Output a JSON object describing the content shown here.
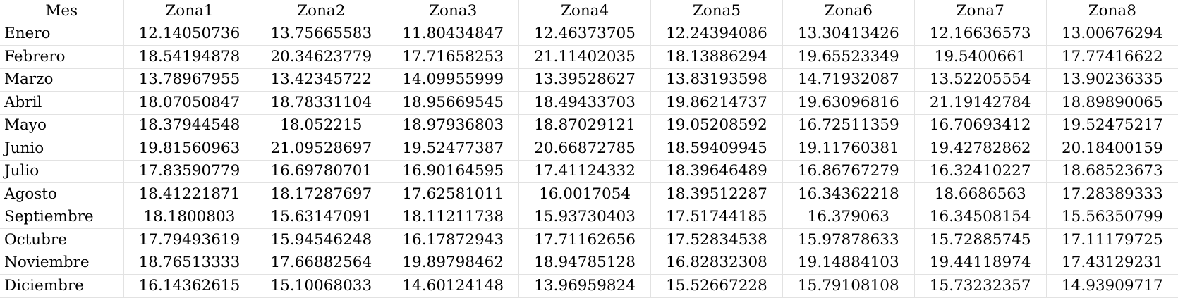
{
  "table": {
    "headers": [
      "Mes",
      "Zona1",
      "Zona2",
      "Zona3",
      "Zona4",
      "Zona5",
      "Zona6",
      "Zona7",
      "Zona8"
    ],
    "rows": [
      [
        "Enero",
        "12.14050736",
        "13.75665583",
        "11.80434847",
        "12.46373705",
        "12.24394086",
        "13.30413426",
        "12.16636573",
        "13.00676294"
      ],
      [
        "Febrero",
        "18.54194878",
        "20.34623779",
        "17.71658253",
        "21.11402035",
        "18.13886294",
        "19.65523349",
        "19.5400661",
        "17.77416622"
      ],
      [
        "Marzo",
        "13.78967955",
        "13.42345722",
        "14.09955999",
        "13.39528627",
        "13.83193598",
        "14.71932087",
        "13.52205554",
        "13.90236335"
      ],
      [
        "Abril",
        "18.07050847",
        "18.78331104",
        "18.95669545",
        "18.49433703",
        "19.86214737",
        "19.63096816",
        "21.19142784",
        "18.89890065"
      ],
      [
        "Mayo",
        "18.37944548",
        "18.052215",
        "18.97936803",
        "18.87029121",
        "19.05208592",
        "16.72511359",
        "16.70693412",
        "19.52475217"
      ],
      [
        "Junio",
        "19.81560963",
        "21.09528697",
        "19.52477387",
        "20.66872785",
        "18.59409945",
        "19.11760381",
        "19.42782862",
        "20.18400159"
      ],
      [
        "Julio",
        "17.83590779",
        "16.69780701",
        "16.90164595",
        "17.41124332",
        "18.39646489",
        "16.86767279",
        "16.32410227",
        "18.68523673"
      ],
      [
        "Agosto",
        "18.41221871",
        "18.17287697",
        "17.62581011",
        "16.0017054",
        "18.39512287",
        "16.34362218",
        "18.6686563",
        "17.28389333"
      ],
      [
        "Septiembre",
        "18.1800803",
        "15.63147091",
        "18.11211738",
        "15.93730403",
        "17.51744185",
        "16.379063",
        "16.34508154",
        "15.56350799"
      ],
      [
        "Octubre",
        "17.79493619",
        "15.94546248",
        "16.17872943",
        "17.71162656",
        "17.52834538",
        "15.97878633",
        "15.72885745",
        "17.11179725"
      ],
      [
        "Noviembre",
        "18.76513333",
        "17.66882564",
        "19.89798462",
        "18.94785128",
        "16.82832308",
        "19.14884103",
        "19.44118974",
        "17.43129231"
      ],
      [
        "Diciembre",
        "16.14362615",
        "15.10068033",
        "14.60124148",
        "13.96959824",
        "15.52667228",
        "15.79108108",
        "15.73232357",
        "14.93909717"
      ]
    ]
  }
}
